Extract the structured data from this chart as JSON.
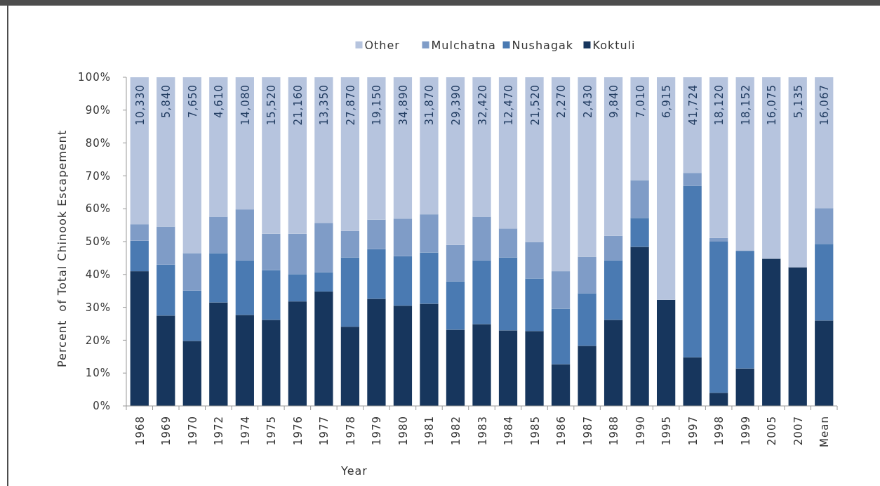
{
  "chart_data": {
    "type": "bar",
    "stacked": true,
    "xlabel": "Year",
    "ylabel": "Percent  of Total Chinook Escapement",
    "categories": [
      "1968",
      "1969",
      "1970",
      "1972",
      "1974",
      "1975",
      "1976",
      "1977",
      "1978",
      "1979",
      "1980",
      "1981",
      "1982",
      "1983",
      "1984",
      "1985",
      "1986",
      "1987",
      "1988",
      "1990",
      "1995",
      "1997",
      "1998",
      "1999",
      "2005",
      "2007",
      "Mean"
    ],
    "series": [
      {
        "name": "Koktuli",
        "color": "#17365d",
        "values": [
          41,
          27.5,
          19.8,
          31.5,
          27.7,
          26.2,
          31.8,
          34.8,
          24.1,
          32.6,
          30.5,
          31.1,
          23.2,
          24.9,
          23,
          22.8,
          12.7,
          18.3,
          26.2,
          48.4,
          32.3,
          14.8,
          4,
          11.4,
          44.8,
          42.2,
          26
        ]
      },
      {
        "name": "Nushagak",
        "color": "#4a7ab2",
        "values": [
          9.3,
          15.5,
          15.3,
          15,
          16.6,
          15.1,
          8.3,
          5.9,
          21.1,
          15.1,
          15.1,
          15.6,
          14.7,
          19.4,
          22.2,
          16,
          16.9,
          16,
          18.1,
          8.8,
          0,
          52.2,
          46,
          35.8,
          0,
          0,
          23.3
        ]
      },
      {
        "name": "Mulchatna",
        "color": "#7f9cc7",
        "values": [
          5,
          11.6,
          11.4,
          11.1,
          15.5,
          11.1,
          12.3,
          15,
          8.1,
          9,
          11.4,
          11.6,
          11.1,
          13.3,
          8.8,
          11.1,
          11.4,
          11.1,
          7.5,
          11.5,
          0,
          3.9,
          1.1,
          0,
          0,
          0,
          10.9
        ]
      },
      {
        "name": "Other",
        "color": "#b6c4de",
        "values": [
          44.7,
          45.4,
          53.5,
          42.4,
          40.2,
          47.6,
          47.6,
          44.3,
          46.7,
          43.3,
          43,
          41.7,
          51,
          42.4,
          46,
          50.1,
          59,
          54.6,
          48.2,
          31.3,
          67.7,
          29.1,
          48.9,
          52.8,
          55.2,
          57.8,
          39.8
        ]
      }
    ],
    "annotations": [
      {
        "text": "10,330",
        "x": "1968",
        "y": 100
      },
      {
        "text": "5,840",
        "x": "1969",
        "y": 100
      },
      {
        "text": "7,650",
        "x": "1970",
        "y": 100
      },
      {
        "text": "4,610",
        "x": "1972",
        "y": 100
      },
      {
        "text": "14,080",
        "x": "1974",
        "y": 100
      },
      {
        "text": "15,520",
        "x": "1975",
        "y": 100
      },
      {
        "text": "21,160",
        "x": "1976",
        "y": 100
      },
      {
        "text": "13,350",
        "x": "1977",
        "y": 100
      },
      {
        "text": "27,870",
        "x": "1978",
        "y": 100
      },
      {
        "text": "19,150",
        "x": "1979",
        "y": 100
      },
      {
        "text": "34,890",
        "x": "1980",
        "y": 100
      },
      {
        "text": "31,870",
        "x": "1981",
        "y": 100
      },
      {
        "text": "29,390",
        "x": "1982",
        "y": 100
      },
      {
        "text": "32,420",
        "x": "1983",
        "y": 100
      },
      {
        "text": "12,470",
        "x": "1984",
        "y": 100
      },
      {
        "text": "21,520",
        "x": "1985",
        "y": 100
      },
      {
        "text": "2,270",
        "x": "1986",
        "y": 100
      },
      {
        "text": "2,430",
        "x": "1987",
        "y": 100
      },
      {
        "text": "9,840",
        "x": "1988",
        "y": 100
      },
      {
        "text": "7,010",
        "x": "1990",
        "y": 100
      },
      {
        "text": "6,915",
        "x": "1995",
        "y": 100
      },
      {
        "text": "41,724",
        "x": "1997",
        "y": 100
      },
      {
        "text": "18,120",
        "x": "1998",
        "y": 100
      },
      {
        "text": "18,152",
        "x": "1999",
        "y": 100
      },
      {
        "text": "16,075",
        "x": "2005",
        "y": 100
      },
      {
        "text": "5,135",
        "x": "2007",
        "y": 100
      },
      {
        "text": "16,067",
        "x": "Mean",
        "y": 100
      }
    ],
    "ylim": [
      0,
      100
    ],
    "yticks": [
      {
        "value": 0,
        "label": "0%"
      },
      {
        "value": 10,
        "label": "10%"
      },
      {
        "value": 20,
        "label": "20%"
      },
      {
        "value": 30,
        "label": "30%"
      },
      {
        "value": 40,
        "label": "40%"
      },
      {
        "value": 50,
        "label": "50%"
      },
      {
        "value": 60,
        "label": "60%"
      },
      {
        "value": 70,
        "label": "70%"
      },
      {
        "value": 80,
        "label": "80%"
      },
      {
        "value": 90,
        "label": "90%"
      },
      {
        "value": 100,
        "label": "100%"
      }
    ],
    "grid": false,
    "legend": "top"
  }
}
